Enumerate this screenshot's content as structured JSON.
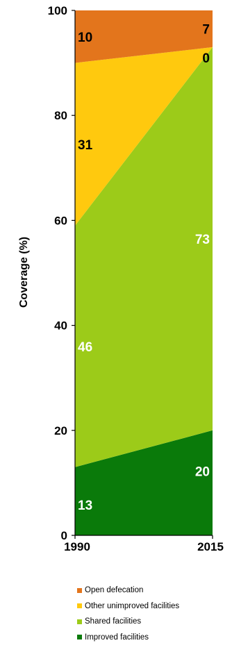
{
  "chart_data": {
    "type": "area",
    "stacked": true,
    "x": [
      "1990",
      "2015"
    ],
    "ylabel": "Coverage (%)",
    "ylim": [
      0,
      100
    ],
    "yticks": [
      "0",
      "20",
      "40",
      "60",
      "80",
      "100"
    ],
    "grid": false,
    "legend_position": "bottom",
    "series": [
      {
        "name": "Improved facilities",
        "values": [
          13,
          20
        ],
        "labels": [
          "13",
          "20"
        ],
        "color": "#0a7a0a",
        "label_color": "#ffffff"
      },
      {
        "name": "Shared facilities",
        "values": [
          46,
          73
        ],
        "labels": [
          "46",
          "73"
        ],
        "color": "#9ccb19",
        "label_color": "#ffffff"
      },
      {
        "name": "Other unimproved facilities",
        "values": [
          31,
          0
        ],
        "labels": [
          "31",
          "0"
        ],
        "color": "#ffc90e",
        "label_color": "#000000"
      },
      {
        "name": "Open defecation",
        "values": [
          10,
          7
        ],
        "labels": [
          "10",
          "7"
        ],
        "color": "#e3751c",
        "label_color": "#000000"
      }
    ],
    "legend_order": [
      "Open defecation",
      "Other unimproved facilities",
      "Shared facilities",
      "Improved facilities"
    ]
  }
}
